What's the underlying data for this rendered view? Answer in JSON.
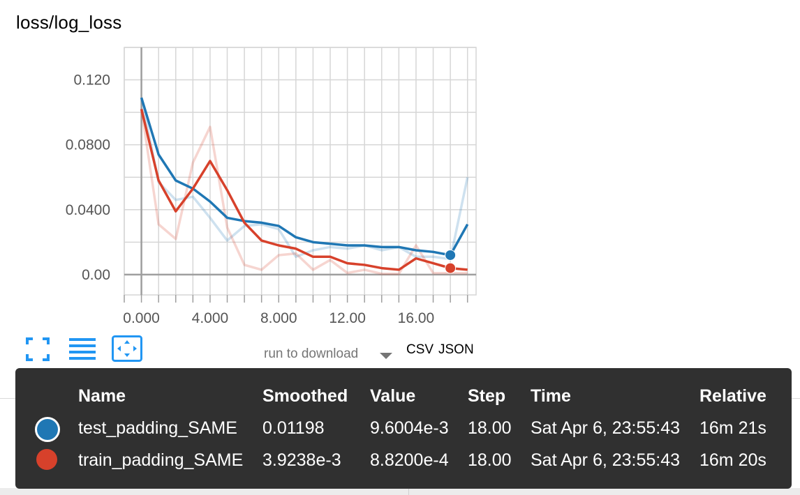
{
  "title": "loss/log_loss",
  "toolbar": {
    "fullscreen_icon": "expand-icon",
    "data_table_icon": "list-icon",
    "fit_domain_icon": "fit-domain-icon"
  },
  "download": {
    "run_select_label": "run to download",
    "csv_label": "CSV",
    "json_label": "JSON"
  },
  "colors": {
    "test": "#1f77b4",
    "train": "#d7412b",
    "grid": "#d6d6d6",
    "axis": "#9e9e9e"
  },
  "chart_data": {
    "type": "line",
    "title": "loss/log_loss",
    "xlabel": "",
    "ylabel": "",
    "xlim": [
      -1,
      19.5
    ],
    "ylim": [
      -0.0125,
      0.14
    ],
    "x_ticks": [
      "0.000",
      "4.000",
      "8.000",
      "12.00",
      "16.00"
    ],
    "x_tick_values": [
      0,
      4,
      8,
      12,
      16
    ],
    "y_ticks": [
      "0.00",
      "0.0400",
      "0.0800",
      "0.120"
    ],
    "y_tick_values": [
      0,
      0.04,
      0.08,
      0.12
    ],
    "grid": true,
    "series": [
      {
        "name": "test_padding_SAME",
        "color": "#1f77b4",
        "x": [
          0,
          1,
          2,
          3,
          4,
          5,
          6,
          7,
          8,
          9,
          10,
          11,
          12,
          13,
          14,
          15,
          16,
          17,
          18,
          19
        ],
        "smoothed": [
          0.109,
          0.074,
          0.058,
          0.053,
          0.045,
          0.035,
          0.033,
          0.032,
          0.03,
          0.023,
          0.02,
          0.019,
          0.018,
          0.018,
          0.017,
          0.017,
          0.015,
          0.014,
          0.012,
          0.031
        ],
        "values": [
          0.109,
          0.057,
          0.046,
          0.048,
          0.035,
          0.021,
          0.03,
          0.031,
          0.028,
          0.011,
          0.015,
          0.017,
          0.016,
          0.018,
          0.015,
          0.017,
          0.011,
          0.011,
          0.0096,
          0.06
        ]
      },
      {
        "name": "train_padding_SAME",
        "color": "#d7412b",
        "x": [
          0,
          1,
          2,
          3,
          4,
          5,
          6,
          7,
          8,
          9,
          10,
          11,
          12,
          13,
          14,
          15,
          16,
          17,
          18,
          19
        ],
        "smoothed": [
          0.102,
          0.058,
          0.039,
          0.053,
          0.07,
          0.052,
          0.032,
          0.021,
          0.018,
          0.016,
          0.011,
          0.011,
          0.007,
          0.006,
          0.004,
          0.003,
          0.01,
          0.007,
          0.004,
          0.003
        ],
        "values": [
          0.102,
          0.031,
          0.022,
          0.069,
          0.091,
          0.029,
          0.006,
          0.003,
          0.012,
          0.013,
          0.003,
          0.009,
          0.001,
          0.003,
          0.0005,
          0.0005,
          0.018,
          0.001,
          0.0009,
          0.0009
        ]
      }
    ],
    "highlight_step": 18
  },
  "tooltip": {
    "headers": {
      "name": "Name",
      "smoothed": "Smoothed",
      "value": "Value",
      "step": "Step",
      "time": "Time",
      "relative": "Relative"
    },
    "rows": [
      {
        "name": "test_padding_SAME",
        "smoothed": "0.01198",
        "value": "9.6004e-3",
        "step": "18.00",
        "time": "Sat Apr 6, 23:55:43",
        "relative": "16m 21s"
      },
      {
        "name": "train_padding_SAME",
        "smoothed": "3.9238e-3",
        "value": "8.8200e-4",
        "step": "18.00",
        "time": "Sat Apr 6, 23:55:43",
        "relative": "16m 20s"
      }
    ]
  }
}
